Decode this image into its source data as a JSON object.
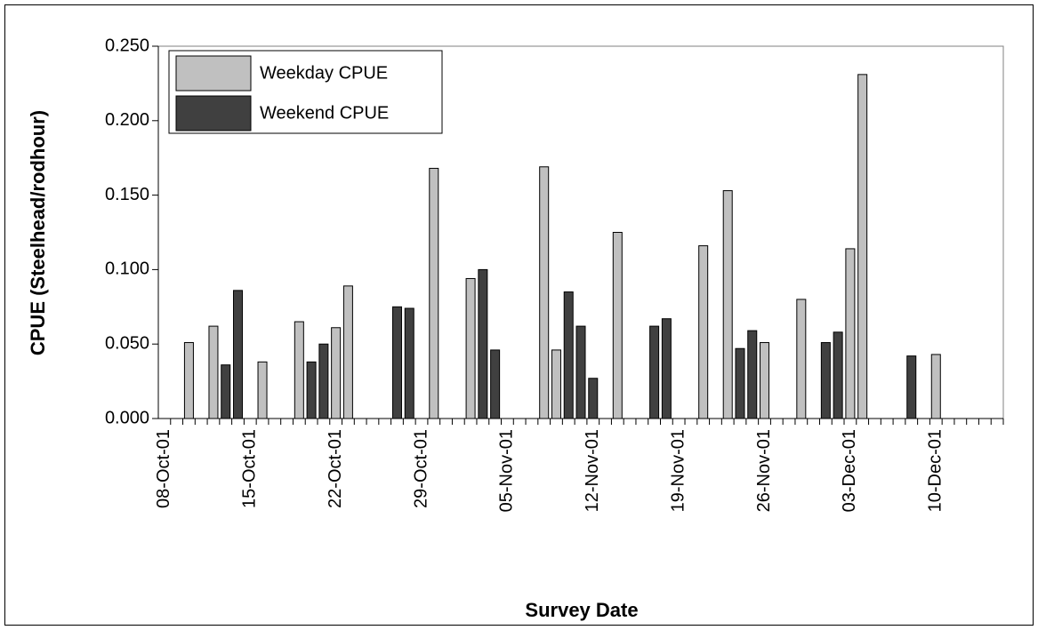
{
  "chart_data": {
    "type": "bar",
    "x_label": "Survey Date",
    "y_label": "CPUE (Steelhead/rodhour)",
    "categories": [
      "08-Oct-01",
      null,
      null,
      null,
      null,
      null,
      null,
      "15-Oct-01",
      null,
      null,
      null,
      null,
      null,
      null,
      "22-Oct-01",
      null,
      null,
      null,
      null,
      null,
      null,
      "29-Oct-01",
      null,
      null,
      null,
      null,
      null,
      null,
      "05-Nov-01",
      null,
      null,
      null,
      null,
      null,
      null,
      "12-Nov-01",
      null,
      null,
      null,
      null,
      null,
      null,
      "19-Nov-01",
      null,
      null,
      null,
      null,
      null,
      null,
      "26-Nov-01",
      null,
      null,
      null,
      null,
      null,
      null,
      "03-Dec-01",
      null,
      null,
      null,
      null,
      null,
      null,
      "10-Dec-01",
      null,
      null,
      null,
      null,
      null
    ],
    "series": [
      {
        "name": "Weekday CPUE",
        "color": "#c0c0c0",
        "values": [
          null,
          null,
          0.051,
          null,
          0.062,
          null,
          null,
          null,
          0.038,
          null,
          null,
          0.065,
          null,
          null,
          0.061,
          0.089,
          null,
          null,
          null,
          null,
          null,
          null,
          0.168,
          null,
          null,
          0.094,
          null,
          null,
          null,
          null,
          null,
          0.169,
          0.046,
          null,
          null,
          null,
          null,
          0.125,
          null,
          null,
          null,
          null,
          null,
          null,
          0.116,
          null,
          0.153,
          null,
          null,
          0.051,
          null,
          null,
          0.08,
          null,
          null,
          null,
          0.114,
          0.231,
          null,
          null,
          null,
          null,
          null,
          0.043,
          null,
          null,
          null,
          null,
          null
        ]
      },
      {
        "name": "Weekend CPUE",
        "color": "#404040",
        "values": [
          null,
          null,
          null,
          null,
          null,
          0.036,
          0.086,
          null,
          null,
          null,
          null,
          null,
          0.038,
          0.05,
          null,
          null,
          null,
          null,
          null,
          0.075,
          0.074,
          null,
          null,
          null,
          null,
          null,
          0.1,
          0.046,
          null,
          null,
          null,
          null,
          null,
          0.085,
          0.062,
          0.027,
          null,
          null,
          null,
          null,
          0.062,
          0.067,
          null,
          null,
          null,
          null,
          null,
          0.047,
          0.059,
          null,
          null,
          null,
          null,
          null,
          0.051,
          0.058,
          null,
          null,
          null,
          null,
          null,
          0.042,
          null,
          null,
          null,
          null,
          null,
          null,
          null
        ]
      }
    ],
    "ylim": [
      0,
      0.25
    ],
    "yticks": [
      {
        "value": 0,
        "label": "0.000"
      },
      {
        "value": 0.05,
        "label": "0.050"
      },
      {
        "value": 0.1,
        "label": "0.100"
      },
      {
        "value": 0.15,
        "label": "0.150"
      },
      {
        "value": 0.2,
        "label": "0.200"
      },
      {
        "value": 0.25,
        "label": "0.250"
      }
    ],
    "grid": false,
    "legend": "upper left"
  }
}
